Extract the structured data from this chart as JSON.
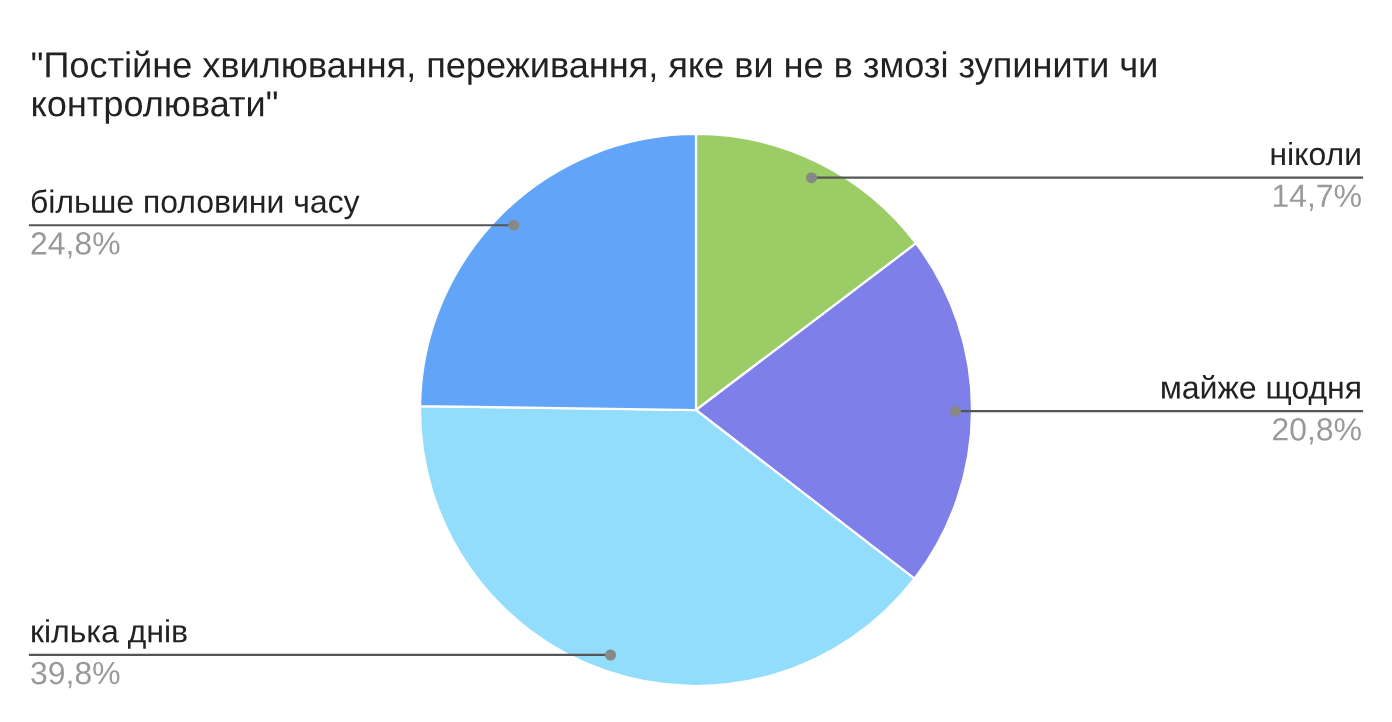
{
  "chart_data": {
    "type": "pie",
    "title": "\"Постійне хвилювання, переживання, яке ви не в змозі зупинити чи контролювати\"",
    "categories": [
      "ніколи",
      "майже щодня",
      "кілька днів",
      "більше половини часу"
    ],
    "values": [
      14.7,
      20.8,
      39.8,
      24.8
    ],
    "colors": [
      "#9ccc65",
      "#7e7fe8",
      "#93ddfc",
      "#62a5f8"
    ],
    "value_labels": [
      "14,7%",
      "20,8%",
      "39,8%",
      "24,8%"
    ]
  }
}
